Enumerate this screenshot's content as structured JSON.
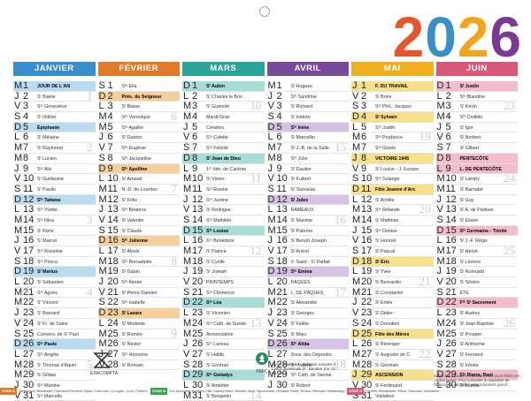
{
  "year_digits": [
    {
      "digit": "2",
      "color": "#e4572e"
    },
    {
      "digit": "0",
      "color": "#3b8fc9"
    },
    {
      "digit": "2",
      "color": "#f0a51c"
    },
    {
      "digit": "6",
      "color": "#7b3a92"
    }
  ],
  "months": [
    {
      "name": "JANVIER",
      "color": "#3a8fcb",
      "hl": "#b9dcf3",
      "days": [
        {
          "l": "M",
          "n": "1",
          "s": "JOUR DE L'AN",
          "h": 1
        },
        {
          "l": "J",
          "n": "2",
          "s": "Sᵗ Basile",
          "w": "1"
        },
        {
          "l": "V",
          "n": "3",
          "s": "Sᵗᵉ Geneviève"
        },
        {
          "l": "S",
          "n": "4",
          "s": "Sᵗ Odilon"
        },
        {
          "l": "D",
          "n": "5",
          "s": "Épiphanie",
          "h": 1
        },
        {
          "l": "L",
          "n": "6",
          "s": "Sᵗ Mélaine"
        },
        {
          "l": "M",
          "n": "7",
          "s": "Sᵗ Raymond",
          "w": "2"
        },
        {
          "l": "M",
          "n": "8",
          "s": "Sᵗ Lucien"
        },
        {
          "l": "J",
          "n": "9",
          "s": "Sᵗᵉ Alix"
        },
        {
          "l": "V",
          "n": "10",
          "s": "Sᵗ Guillaume"
        },
        {
          "l": "S",
          "n": "11",
          "s": "Sᵗ Paulin"
        },
        {
          "l": "D",
          "n": "12",
          "s": "Sᵗᵉ Tatiana",
          "h": 1
        },
        {
          "l": "L",
          "n": "13",
          "s": "Sᵗᵉ Yvette"
        },
        {
          "l": "M",
          "n": "14",
          "s": "Sᵗᵉ Nina",
          "w": "3"
        },
        {
          "l": "M",
          "n": "15",
          "s": "Sᵗ Rémi"
        },
        {
          "l": "J",
          "n": "16",
          "s": "Sᵗ Marcel"
        },
        {
          "l": "V",
          "n": "17",
          "s": "Sᵗᵉ Roseline"
        },
        {
          "l": "S",
          "n": "18",
          "s": "Sᵗᵉ Prisca"
        },
        {
          "l": "D",
          "n": "19",
          "s": "Sᵗ Marius",
          "h": 1
        },
        {
          "l": "L",
          "n": "20",
          "s": "Sᵗ Sébastien"
        },
        {
          "l": "M",
          "n": "21",
          "s": "Sᵗᵉ Agnès",
          "w": "4"
        },
        {
          "l": "M",
          "n": "22",
          "s": "Sᵗ Vincent"
        },
        {
          "l": "J",
          "n": "23",
          "s": "Sᵗ Barnard"
        },
        {
          "l": "V",
          "n": "24",
          "s": "Sᵗ Fr. de Sales"
        },
        {
          "l": "S",
          "n": "25",
          "s": "Convers. de Sᵗ Paul"
        },
        {
          "l": "D",
          "n": "26",
          "s": "Sᵗᵉ Paule",
          "h": 1
        },
        {
          "l": "L",
          "n": "27",
          "s": "Sᵗᵉ Angèle"
        },
        {
          "l": "M",
          "n": "28",
          "s": "Sᵗ Thomas d'Aquin",
          "w": "5"
        },
        {
          "l": "M",
          "n": "29",
          "s": "Sᵗ Gildas"
        },
        {
          "l": "J",
          "n": "30",
          "s": "Sᵗᵉ Martine"
        },
        {
          "l": "V",
          "n": "31",
          "s": "Sᵗᵉ Marcelle"
        }
      ]
    },
    {
      "name": "FÉVRIER",
      "color": "#e07b2a",
      "hl": "#f6cf9e",
      "days": [
        {
          "l": "S",
          "n": "1",
          "s": "Sᵗᵉ Ella"
        },
        {
          "l": "D",
          "n": "2",
          "s": "Prés. du Seigneur",
          "h": 1
        },
        {
          "l": "L",
          "n": "3",
          "s": "Sᵗ Blaise"
        },
        {
          "l": "M",
          "n": "4",
          "s": "Sᵗᵉ Véronique",
          "w": "6"
        },
        {
          "l": "M",
          "n": "5",
          "s": "Sᵗᵉ Agathe"
        },
        {
          "l": "J",
          "n": "6",
          "s": "Sᵗ Gaston"
        },
        {
          "l": "V",
          "n": "7",
          "s": "Sᵗᵉ Eugénie"
        },
        {
          "l": "S",
          "n": "8",
          "s": "Sᵗᵉ Jacqueline"
        },
        {
          "l": "D",
          "n": "9",
          "s": "Sᵗᵉ Apolline",
          "h": 1
        },
        {
          "l": "L",
          "n": "10",
          "s": "Sᵗ Arnaud"
        },
        {
          "l": "M",
          "n": "11",
          "s": "N.-D. de Lourdes",
          "w": "7"
        },
        {
          "l": "M",
          "n": "12",
          "s": "Sᵗ Félix"
        },
        {
          "l": "J",
          "n": "13",
          "s": "Sᵗᵉ Béatrice"
        },
        {
          "l": "V",
          "n": "14",
          "s": "Sᵗ Valentin"
        },
        {
          "l": "S",
          "n": "15",
          "s": "Sᵗ Claude"
        },
        {
          "l": "D",
          "n": "16",
          "s": "Sᵗᵉ Julienne",
          "h": 1
        },
        {
          "l": "L",
          "n": "17",
          "s": "Sᵗ Alexis"
        },
        {
          "l": "M",
          "n": "18",
          "s": "Sᵗᵉ Bernadette",
          "w": "8"
        },
        {
          "l": "M",
          "n": "19",
          "s": "Sᵗ Gabin"
        },
        {
          "l": "J",
          "n": "20",
          "s": "Sᵗᵉ Aimée"
        },
        {
          "l": "V",
          "n": "21",
          "s": "Sᵗ Pierre Damien"
        },
        {
          "l": "S",
          "n": "22",
          "s": "Sᵗᵉ Isabelle"
        },
        {
          "l": "D",
          "n": "23",
          "s": "Sᵗ Lazare",
          "h": 1
        },
        {
          "l": "L",
          "n": "24",
          "s": "Sᵗ Modeste"
        },
        {
          "l": "M",
          "n": "25",
          "s": "Sᵗ Roméo",
          "w": "9"
        },
        {
          "l": "M",
          "n": "26",
          "s": "Sᵗ Nestor"
        },
        {
          "l": "J",
          "n": "27",
          "s": "Sᵗᵉ Honorine"
        },
        {
          "l": "V",
          "n": "28",
          "s": "Sᵗ Romain"
        }
      ]
    },
    {
      "name": "MARS",
      "color": "#2aa39a",
      "hl": "#a8dcd7",
      "days": [
        {
          "l": "D",
          "n": "1",
          "s": "Sᵗ Aubin",
          "h": 1
        },
        {
          "l": "L",
          "n": "2",
          "s": "Sᵗ Charles le Bon"
        },
        {
          "l": "M",
          "n": "3",
          "s": "Sᵗ Guénolé",
          "w": "10"
        },
        {
          "l": "M",
          "n": "4",
          "s": "Mardi-Gras"
        },
        {
          "l": "J",
          "n": "5",
          "s": "Cendres"
        },
        {
          "l": "V",
          "n": "6",
          "s": "Sᵗᵉ Colette"
        },
        {
          "l": "S",
          "n": "7",
          "s": "Sᵗᵉ Félicité"
        },
        {
          "l": "D",
          "n": "8",
          "s": "Sᵗ Jean de Dieu",
          "h": 1
        },
        {
          "l": "L",
          "n": "9",
          "s": "1ᵉʳ dim. de Carême"
        },
        {
          "l": "M",
          "n": "10",
          "s": "Sᵗ Vivien",
          "w": "11"
        },
        {
          "l": "M",
          "n": "11",
          "s": "Sᵗᵉ Rosine"
        },
        {
          "l": "J",
          "n": "12",
          "s": "Sᵗᵉ Justine"
        },
        {
          "l": "V",
          "n": "13",
          "s": "Sᵗ Rodrigue"
        },
        {
          "l": "S",
          "n": "14",
          "s": "Sᵗᵉ Mathilde"
        },
        {
          "l": "D",
          "n": "15",
          "s": "Sᵗᵉ Louise",
          "h": 1
        },
        {
          "l": "L",
          "n": "16",
          "s": "Sᵗᵉ Bénédicte"
        },
        {
          "l": "M",
          "n": "17",
          "s": "Sᵗ Patrice",
          "w": "12"
        },
        {
          "l": "M",
          "n": "18",
          "s": "Sᵗ Cyrille"
        },
        {
          "l": "J",
          "n": "19",
          "s": "Sᵗ Joseph"
        },
        {
          "l": "V",
          "n": "20",
          "s": "PRINTEMPS"
        },
        {
          "l": "S",
          "n": "21",
          "s": "Sᵗᵉ Clémence"
        },
        {
          "l": "D",
          "n": "22",
          "s": "Sᵗᵉ Léa",
          "h": 1
        },
        {
          "l": "L",
          "n": "23",
          "s": "Sᵗ Victorien"
        },
        {
          "l": "M",
          "n": "24",
          "s": "Sᵗᵉ Cath. de Suède",
          "w": "13"
        },
        {
          "l": "M",
          "n": "25",
          "s": "Annonciation"
        },
        {
          "l": "J",
          "n": "26",
          "s": "Sᵗᵉ Larissa"
        },
        {
          "l": "V",
          "n": "27",
          "s": "Sᵗ Habib"
        },
        {
          "l": "S",
          "n": "28",
          "s": "Sᵗ Gontran"
        },
        {
          "l": "D",
          "n": "29",
          "s": "Sᵗᵉ Gwladys",
          "h": 1
        },
        {
          "l": "L",
          "n": "30",
          "s": "Sᵗ Amédée"
        },
        {
          "l": "M",
          "n": "31",
          "s": "Sᵗ Benjamin",
          "w": "14"
        }
      ]
    },
    {
      "name": "AVRIL",
      "color": "#7a4a9a",
      "hl": "#d6c2e6",
      "days": [
        {
          "l": "M",
          "n": "1",
          "s": "Sᵗ Hugues"
        },
        {
          "l": "J",
          "n": "2",
          "s": "Sᵗᵉ Sandrine"
        },
        {
          "l": "V",
          "n": "3",
          "s": "Sᵗ Richard"
        },
        {
          "l": "S",
          "n": "4",
          "s": "Sᵗ Isidore"
        },
        {
          "l": "D",
          "n": "5",
          "s": "Sᵗᵉ Irène",
          "h": 1
        },
        {
          "l": "L",
          "n": "6",
          "s": "Sᵗ Marcellin"
        },
        {
          "l": "M",
          "n": "7",
          "s": "Sᵗ J.-B. de la Salle",
          "w": "15"
        },
        {
          "l": "M",
          "n": "8",
          "s": "Sᵗᵉ Julie"
        },
        {
          "l": "J",
          "n": "9",
          "s": "Sᵗ Gautier"
        },
        {
          "l": "V",
          "n": "10",
          "s": "Sᵗ Fulbert"
        },
        {
          "l": "S",
          "n": "11",
          "s": "Sᵗ Stanislas"
        },
        {
          "l": "D",
          "n": "12",
          "s": "Sᵗ Jules",
          "h": 1
        },
        {
          "l": "L",
          "n": "13",
          "s": "RAMEAUX"
        },
        {
          "l": "M",
          "n": "14",
          "s": "Sᵗ Maxime",
          "w": "16"
        },
        {
          "l": "M",
          "n": "15",
          "s": "Sᵗ Paterne"
        },
        {
          "l": "J",
          "n": "16",
          "s": "Sᵗ Benoît-Joseph"
        },
        {
          "l": "V",
          "n": "17",
          "s": "Sᵗ Anicet"
        },
        {
          "l": "S",
          "n": "18",
          "s": "V. Saint - Sᵗ Parfait"
        },
        {
          "l": "D",
          "n": "19",
          "s": "Sᵗᵉ Emma",
          "h": 1
        },
        {
          "l": "L",
          "n": "20",
          "s": "PÂQUES"
        },
        {
          "l": "M",
          "n": "21",
          "s": "L. DE PÂQUES",
          "w": "17"
        },
        {
          "l": "M",
          "n": "22",
          "s": "Sᵗ Alexandre"
        },
        {
          "l": "J",
          "n": "23",
          "s": "Sᵗ Georges"
        },
        {
          "l": "V",
          "n": "24",
          "s": "Sᵗ Fidèle"
        },
        {
          "l": "S",
          "n": "25",
          "s": "Sᵗ Marc"
        },
        {
          "l": "D",
          "n": "26",
          "s": "Sᵗᵉ Alida",
          "h": 1
        },
        {
          "l": "L",
          "n": "27",
          "s": "Souv. des Déportés"
        },
        {
          "l": "M",
          "n": "28",
          "s": "Sᵗᵉ Valérie",
          "w": "18"
        },
        {
          "l": "M",
          "n": "29",
          "s": "Sᵗᵉ Cath. de Sienne"
        },
        {
          "l": "J",
          "n": "30",
          "s": "Sᵗ Robert"
        }
      ]
    },
    {
      "name": "MAI",
      "color": "#f0b020",
      "hl": "#f8e08a",
      "days": [
        {
          "l": "J",
          "n": "1",
          "s": "F. DU TRAVAIL",
          "h": 1
        },
        {
          "l": "V",
          "n": "2",
          "s": "Sᵗ Boris"
        },
        {
          "l": "S",
          "n": "3",
          "s": "Sᵗˢ Phil., Jacques"
        },
        {
          "l": "D",
          "n": "4",
          "s": "Sᵗ Sylvain",
          "h": 1
        },
        {
          "l": "L",
          "n": "5",
          "s": "Sᵗᵉ Judith"
        },
        {
          "l": "M",
          "n": "6",
          "s": "Sᵗᵉ Prudence",
          "w": "19"
        },
        {
          "l": "M",
          "n": "7",
          "s": "Sᵗᵉ Gisèle"
        },
        {
          "l": "J",
          "n": "8",
          "s": "VICTOIRE 1945",
          "h": 1
        },
        {
          "l": "V",
          "n": "9",
          "s": "Sᵗ Louise - J. Europe"
        },
        {
          "l": "S",
          "n": "10",
          "s": "Sᵗᵉ Solange"
        },
        {
          "l": "D",
          "n": "11",
          "s": "Fête Jeanne d'Arc",
          "h": 1
        },
        {
          "l": "L",
          "n": "12",
          "s": "Sᵗ Achille"
        },
        {
          "l": "M",
          "n": "13",
          "s": "Sᵗᵉ Rolande",
          "w": "20"
        },
        {
          "l": "M",
          "n": "14",
          "s": "Sᵗ Matthias"
        },
        {
          "l": "J",
          "n": "15",
          "s": "Sᵗᵉ Denise"
        },
        {
          "l": "V",
          "n": "16",
          "s": "Sᵗ Honoré"
        },
        {
          "l": "S",
          "n": "17",
          "s": "Sᵗ Pascal"
        },
        {
          "l": "D",
          "n": "18",
          "s": "Sᵗ Éric",
          "h": 1
        },
        {
          "l": "L",
          "n": "19",
          "s": "Sᵗ Yves"
        },
        {
          "l": "M",
          "n": "20",
          "s": "Sᵗ Bernardin",
          "w": "21"
        },
        {
          "l": "M",
          "n": "21",
          "s": "Sᵗ Constantin"
        },
        {
          "l": "J",
          "n": "22",
          "s": "Sᵗ Émile"
        },
        {
          "l": "V",
          "n": "23",
          "s": "Sᵗ Didier"
        },
        {
          "l": "S",
          "n": "24",
          "s": "Sᵗ Donatien"
        },
        {
          "l": "D",
          "n": "25",
          "s": "Fête des Mères",
          "h": 1
        },
        {
          "l": "L",
          "n": "26",
          "s": "Sᵗ Bérenger"
        },
        {
          "l": "M",
          "n": "27",
          "s": "Sᵗ Augustin de C.",
          "w": "22"
        },
        {
          "l": "M",
          "n": "28",
          "s": "Sᵗ Germain"
        },
        {
          "l": "J",
          "n": "29",
          "s": "ASCENSION",
          "h": 1
        },
        {
          "l": "V",
          "n": "30",
          "s": "Sᵗ Ferdinand"
        },
        {
          "l": "S",
          "n": "31",
          "s": "Visitation"
        }
      ]
    },
    {
      "name": "JUIN",
      "color": "#d8587a",
      "hl": "#f3bccb",
      "days": [
        {
          "l": "D",
          "n": "1",
          "s": "Sᵗ Justin",
          "h": 1
        },
        {
          "l": "L",
          "n": "2",
          "s": "Sᵗᵉ Blandine"
        },
        {
          "l": "M",
          "n": "3",
          "s": "Sᵗ Kévin",
          "w": "23"
        },
        {
          "l": "M",
          "n": "4",
          "s": "Sᵗᵉ Clotilde"
        },
        {
          "l": "J",
          "n": "5",
          "s": "Sᵗ Igor"
        },
        {
          "l": "V",
          "n": "6",
          "s": "Sᵗ Norbert"
        },
        {
          "l": "S",
          "n": "7",
          "s": "Sᵗ Gilbert"
        },
        {
          "l": "D",
          "n": "8",
          "s": "PENTECÔTE",
          "h": 1
        },
        {
          "l": "L",
          "n": "9",
          "s": "L. DE PENTECÔTE",
          "h": 1
        },
        {
          "l": "M",
          "n": "10",
          "s": "Sᵗ Landry",
          "w": "24"
        },
        {
          "l": "M",
          "n": "11",
          "s": "Sᵗ Barnabé"
        },
        {
          "l": "J",
          "n": "12",
          "s": "Sᵗ Guy"
        },
        {
          "l": "V",
          "n": "13",
          "s": "Sᵗ A. de Padoue"
        },
        {
          "l": "S",
          "n": "14",
          "s": "Sᵗ Élisée"
        },
        {
          "l": "D",
          "n": "15",
          "s": "Sᵗᵉ Germaine - Trinité",
          "h": 1
        },
        {
          "l": "L",
          "n": "16",
          "s": "Sᵗ J.-F. Régis"
        },
        {
          "l": "M",
          "n": "17",
          "s": "Sᵗ Hervé",
          "w": "25"
        },
        {
          "l": "M",
          "n": "18",
          "s": "Sᵗ Léonce"
        },
        {
          "l": "J",
          "n": "19",
          "s": "Sᵗ Romuald"
        },
        {
          "l": "V",
          "n": "20",
          "s": "Sᵗ Silvère"
        },
        {
          "l": "S",
          "n": "21",
          "s": "ÉTÉ"
        },
        {
          "l": "D",
          "n": "22",
          "s": "Fᵗᵉ Sᵗ Sacrement",
          "h": 1
        },
        {
          "l": "L",
          "n": "23",
          "s": "Sᵗ Audrey"
        },
        {
          "l": "M",
          "n": "24",
          "s": "Sᵗ Jean-Baptiste",
          "w": "26"
        },
        {
          "l": "M",
          "n": "25",
          "s": "Sᵗ Prosper"
        },
        {
          "l": "J",
          "n": "26",
          "s": "Sᵗ Anthelme"
        },
        {
          "l": "V",
          "n": "27",
          "s": "Sᵗ Fernand"
        },
        {
          "l": "S",
          "n": "28",
          "s": "Sᵗ Irénée"
        },
        {
          "l": "D",
          "n": "29",
          "s": "Sᵗˢ Pierre, Paul",
          "h": 1
        },
        {
          "l": "L",
          "n": "30",
          "s": "Sᵗ Martial"
        }
      ]
    }
  ],
  "cycle_text": "Cycle solaire 18 · Indiction romaine 3 · Lettre dominicale D · Nombre d'or 12 · Epacte 0",
  "notice_text": "Dates des vacances scolaires et des jours fériés non contractuelles. Pour connaître le calendrier de l'Éducation nationale : www.education.gouv.fr",
  "logos": {
    "exacompta": "EXACOMPTA",
    "pefc": "PEFC"
  },
  "footer": {
    "zone_a_label": "ZONE A",
    "zone_a": "Besançon, Bordeaux, Clermont-Ferrand, Dijon, Grenoble, Limoges, Lyon, Poitiers",
    "zone_b_label": "ZONE B",
    "zone_b": "Aix-Marseille, Amiens, Lille, Nancy-Metz, Nantes, Nice, Normandie, Orléans-Tours, Reims, Rennes, Strasbourg",
    "zone_c_label": "ZONE C",
    "zone_c": "Créteil, Montpellier, Paris, Toulouse, Versailles"
  }
}
